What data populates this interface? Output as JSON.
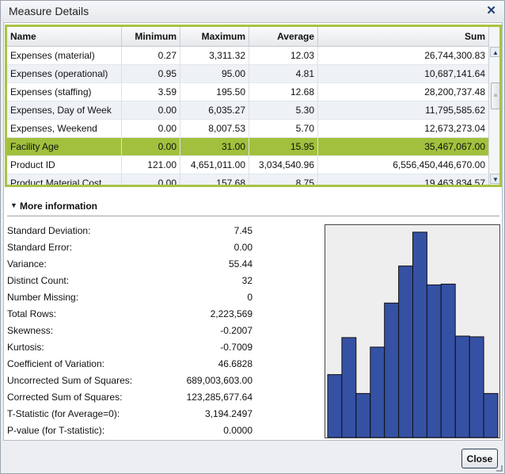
{
  "window": {
    "title": "Measure Details",
    "close_glyph": "✕"
  },
  "table": {
    "columns": [
      "Name",
      "Minimum",
      "Maximum",
      "Average",
      "Sum"
    ],
    "rows": [
      {
        "name": "Expenses (material)",
        "min": "0.27",
        "max": "3,311.32",
        "avg": "12.03",
        "sum": "26,744,300.83"
      },
      {
        "name": "Expenses (operational)",
        "min": "0.95",
        "max": "95.00",
        "avg": "4.81",
        "sum": "10,687,141.64"
      },
      {
        "name": "Expenses (staffing)",
        "min": "3.59",
        "max": "195.50",
        "avg": "12.68",
        "sum": "28,200,737.48"
      },
      {
        "name": "Expenses, Day of Week",
        "min": "0.00",
        "max": "6,035.27",
        "avg": "5.30",
        "sum": "11,795,585.62"
      },
      {
        "name": "Expenses, Weekend",
        "min": "0.00",
        "max": "8,007.53",
        "avg": "5.70",
        "sum": "12,673,273.04"
      },
      {
        "name": "Facility Age",
        "min": "0.00",
        "max": "31.00",
        "avg": "15.95",
        "sum": "35,467,067.00"
      },
      {
        "name": "Product ID",
        "min": "121.00",
        "max": "4,651,011.00",
        "avg": "3,034,540.96",
        "sum": "6,556,450,446,670.00"
      },
      {
        "name": "Product Material Cost",
        "min": "0.00",
        "max": "157.68",
        "avg": "8.75",
        "sum": "19,463,834.57"
      }
    ],
    "selected_row": 5,
    "scroll_up_glyph": "▲",
    "scroll_down_glyph": "▼",
    "scroll_thumb_glyph": "≡"
  },
  "more_info": {
    "label": "More information",
    "caret_glyph": "▼"
  },
  "stats": [
    {
      "label": "Standard Deviation:",
      "value": "7.45"
    },
    {
      "label": "Standard Error:",
      "value": "0.00"
    },
    {
      "label": "Variance:",
      "value": "55.44"
    },
    {
      "label": "Distinct Count:",
      "value": "32"
    },
    {
      "label": "Number Missing:",
      "value": "0"
    },
    {
      "label": "Total Rows:",
      "value": "2,223,569"
    },
    {
      "label": "Skewness:",
      "value": "-0.2007"
    },
    {
      "label": "Kurtosis:",
      "value": "-0.7009"
    },
    {
      "label": "Coefficient of Variation:",
      "value": "46.6828"
    },
    {
      "label": "Uncorrected Sum of Squares:",
      "value": "689,003,603.00"
    },
    {
      "label": "Corrected Sum of Squares:",
      "value": "123,285,677.64"
    },
    {
      "label": "T-Statistic (for Average=0):",
      "value": "3,194.2497"
    },
    {
      "label": "P-value (for T-statistic):",
      "value": "0.0000"
    }
  ],
  "chart_data": {
    "type": "bar",
    "title": "",
    "xlabel": "",
    "ylabel": "",
    "values": [
      80,
      127,
      56,
      115,
      171,
      218,
      261,
      194,
      195,
      129,
      128,
      56
    ],
    "ylim": [
      0,
      270
    ],
    "grid": false,
    "bar_color": "#3551a4",
    "background": "#eeeeee"
  },
  "colors": {
    "selected_row": "#a2c03d",
    "table_border": "#a9c244",
    "accent": "#1e3f72"
  },
  "footer": {
    "close_label": "Close"
  }
}
